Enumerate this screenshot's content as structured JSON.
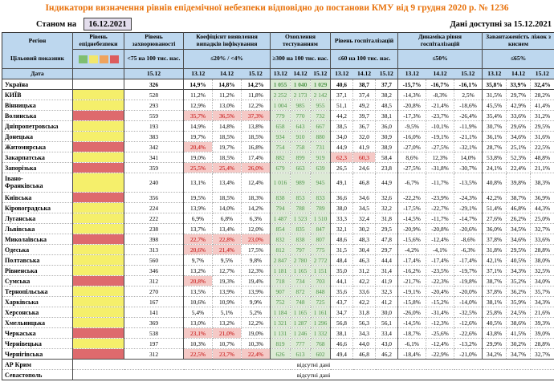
{
  "title": "Індикатори визначення рівнів епідемічної небезпеки відповідно до постанови КМУ від 9 грудня 2020 р. № 1236",
  "as_of_label": "Станом на",
  "as_of_date": "16.12.2021",
  "available_label": "Дані доступні за 15.12.2021",
  "colors": {
    "title": "#E8720C",
    "header_bg": "#BDD7EE",
    "as_of_box_bg": "#E3DDEC",
    "level_yellow": "#F5EF6B",
    "level_red": "#DE6A6D",
    "exceed_bg": "#F5C9C6",
    "exceed_text": "#C00000",
    "testing_bg": "#DCEAD5",
    "testing_text": "#4C9447",
    "legend": [
      "#7FBF70",
      "#F2E76B",
      "#EFA35C",
      "#DD5C5C"
    ]
  },
  "table": {
    "corner": {
      "region": "Регіон",
      "target": "Цільовий показник",
      "date": "Дата"
    },
    "no_data_text": "відсутні дані",
    "groups": [
      {
        "label": "Рівень епіднебезпеки",
        "target": "",
        "cols": 1,
        "dates": []
      },
      {
        "label": "Рівень захворюваності",
        "target": "<75 на 100 тис. нас.",
        "cols": 1,
        "dates": [
          "15.12"
        ]
      },
      {
        "label": "Коефіцієнт виявлення випадків інфікування",
        "target": "≤20% / <4%",
        "cols": 3,
        "dates": [
          "13.12",
          "14.12",
          "15.12"
        ]
      },
      {
        "label": "Охоплення тестуванням",
        "target": "≥300 на 100 тис. нас.",
        "cols": 3,
        "dates": [
          "13.12",
          "14.12",
          "15.12"
        ]
      },
      {
        "label": "Рівень госпіталізацій",
        "target": "≤60 на 100 тис. нас.",
        "cols": 3,
        "dates": [
          "13.12",
          "14.12",
          "15.12"
        ]
      },
      {
        "label": "Динаміка рівня госпіталізацій",
        "target": "≤50%",
        "cols": 3,
        "dates": [
          "13.12",
          "14.12",
          "15.12"
        ]
      },
      {
        "label": "Завантаженість ліжок з киснем",
        "target": "≤65%",
        "cols": 3,
        "dates": [
          "13.12",
          "14.12",
          "15.12"
        ]
      }
    ],
    "rows": [
      {
        "region": "Україна",
        "level": "none",
        "bold": true,
        "solid": true,
        "morbidity": "326",
        "coef": [
          "14,9%",
          "14,8%",
          "14,2%"
        ],
        "test": [
          "1 055",
          "1 040",
          "1 029"
        ],
        "hosp": [
          "40,6",
          "38,7",
          "37,7"
        ],
        "dyn": [
          "-15,7%",
          "-16,7%",
          "-16,1%"
        ],
        "load": [
          "35,8%",
          "33,9%",
          "32,4%"
        ]
      },
      {
        "region": "КИЇВ",
        "level": "yellow",
        "morbidity": "528",
        "coef": [
          "11,2%",
          "11,2%",
          "11,8%"
        ],
        "test": [
          "2 252",
          "2 173",
          "2 142"
        ],
        "hosp": [
          "37,1",
          "37,4",
          "38,2"
        ],
        "dyn": [
          "-14,3%",
          "-8,3%",
          "2,5%"
        ],
        "load": [
          "31,5%",
          "29,7%",
          "28,2%"
        ]
      },
      {
        "region": "Вінницька",
        "level": "yellow",
        "morbidity": "293",
        "coef": [
          "12,9%",
          "13,0%",
          "12,2%"
        ],
        "test": [
          "1 004",
          "985",
          "955"
        ],
        "hosp": [
          "51,1",
          "49,2",
          "48,5"
        ],
        "dyn": [
          "-20,8%",
          "-21,4%",
          "-18,6%"
        ],
        "load": [
          "45,5%",
          "42,9%",
          "41,4%"
        ]
      },
      {
        "region": "Волинська",
        "level": "red",
        "morbidity": "559",
        "coef": [
          "35,7%",
          "36,5%",
          "37,3%"
        ],
        "coef_flags": [
          1,
          1,
          1
        ],
        "test": [
          "779",
          "770",
          "732"
        ],
        "hosp": [
          "44,2",
          "39,7",
          "38,1"
        ],
        "dyn": [
          "-17,3%",
          "-23,7%",
          "-26,4%"
        ],
        "load": [
          "35,4%",
          "33,6%",
          "31,2%"
        ]
      },
      {
        "region": "Дніпропетровська",
        "level": "yellow",
        "morbidity": "193",
        "coef": [
          "14,9%",
          "14,8%",
          "13,8%"
        ],
        "test": [
          "658",
          "643",
          "667"
        ],
        "hosp": [
          "38,5",
          "36,7",
          "36,0"
        ],
        "dyn": [
          "-9,5%",
          "-10,1%",
          "-11,9%"
        ],
        "load": [
          "30,7%",
          "29,6%",
          "29,5%"
        ]
      },
      {
        "region": "Донецька",
        "level": "yellow",
        "morbidity": "383",
        "coef": [
          "19,7%",
          "18,5%",
          "18,5%"
        ],
        "test": [
          "934",
          "910",
          "880"
        ],
        "hosp": [
          "34,0",
          "32,0",
          "30,9"
        ],
        "dyn": [
          "-16,0%",
          "-19,1%",
          "-21,1%"
        ],
        "load": [
          "36,1%",
          "34,6%",
          "31,6%"
        ]
      },
      {
        "region": "Житомирська",
        "level": "red",
        "morbidity": "342",
        "coef": [
          "20,4%",
          "19,7%",
          "16,8%"
        ],
        "coef_flags": [
          1,
          0,
          0
        ],
        "test": [
          "754",
          "758",
          "731"
        ],
        "hosp": [
          "44,9",
          "41,9",
          "38,9"
        ],
        "dyn": [
          "-27,0%",
          "-27,5%",
          "-32,1%"
        ],
        "load": [
          "28,7%",
          "25,1%",
          "22,5%"
        ]
      },
      {
        "region": "Закарпатська",
        "level": "yellow",
        "morbidity": "341",
        "coef": [
          "19,0%",
          "18,5%",
          "17,4%"
        ],
        "test": [
          "882",
          "899",
          "919"
        ],
        "hosp": [
          "62,3",
          "60,3",
          "58,4"
        ],
        "hosp_flags": [
          1,
          1,
          0
        ],
        "dyn": [
          "8,6%",
          "12,3%",
          "14,0%"
        ],
        "load": [
          "53,8%",
          "52,3%",
          "48,8%"
        ]
      },
      {
        "region": "Запорізька",
        "level": "red",
        "morbidity": "359",
        "coef": [
          "25,5%",
          "25,4%",
          "26,0%"
        ],
        "coef_flags": [
          1,
          1,
          1
        ],
        "test": [
          "679",
          "663",
          "639"
        ],
        "hosp": [
          "26,5",
          "24,6",
          "23,8"
        ],
        "dyn": [
          "-27,5%",
          "-31,8%",
          "-30,7%"
        ],
        "load": [
          "24,1%",
          "22,4%",
          "21,1%"
        ]
      },
      {
        "region": "Івано-\nФранківська",
        "level": "yellow",
        "tall": true,
        "morbidity": "240",
        "coef": [
          "13,1%",
          "13,4%",
          "12,4%"
        ],
        "test": [
          "1 016",
          "989",
          "945"
        ],
        "hosp": [
          "49,1",
          "46,8",
          "44,9"
        ],
        "dyn": [
          "-6,7%",
          "-11,7%",
          "-13,5%"
        ],
        "load": [
          "40,8%",
          "39,8%",
          "38,3%"
        ]
      },
      {
        "region": "Київська",
        "level": "red",
        "morbidity": "356",
        "coef": [
          "19,5%",
          "18,5%",
          "18,3%"
        ],
        "test": [
          "838",
          "853",
          "833"
        ],
        "hosp": [
          "36,6",
          "34,6",
          "32,6"
        ],
        "dyn": [
          "-22,2%",
          "-23,9%",
          "-24,3%"
        ],
        "load": [
          "42,2%",
          "38,7%",
          "36,9%"
        ]
      },
      {
        "region": "Кіровоградська",
        "level": "yellow",
        "morbidity": "224",
        "coef": [
          "13,9%",
          "14,0%",
          "14,2%"
        ],
        "test": [
          "794",
          "788",
          "789"
        ],
        "hosp": [
          "38,0",
          "34,5",
          "32,2"
        ],
        "dyn": [
          "-17,5%",
          "-22,7%",
          "-29,1%"
        ],
        "load": [
          "51,4%",
          "46,8%",
          "44,3%"
        ]
      },
      {
        "region": "Луганська",
        "level": "yellow",
        "morbidity": "222",
        "coef": [
          "6,9%",
          "6,8%",
          "6,3%"
        ],
        "test": [
          "1 487",
          "1 523",
          "1 510"
        ],
        "hosp": [
          "33,3",
          "32,4",
          "31,8"
        ],
        "dyn": [
          "-14,5%",
          "-11,7%",
          "-14,7%"
        ],
        "load": [
          "27,6%",
          "26,2%",
          "25,0%"
        ]
      },
      {
        "region": "Львівська",
        "level": "yellow",
        "morbidity": "238",
        "coef": [
          "13,7%",
          "13,4%",
          "12,0%"
        ],
        "test": [
          "854",
          "835",
          "847"
        ],
        "hosp": [
          "32,1",
          "30,2",
          "29,5"
        ],
        "dyn": [
          "-20,9%",
          "-20,8%",
          "-20,6%"
        ],
        "load": [
          "36,0%",
          "34,5%",
          "32,7%"
        ]
      },
      {
        "region": "Миколаївська",
        "level": "red",
        "morbidity": "398",
        "coef": [
          "22,7%",
          "22,8%",
          "23,0%"
        ],
        "coef_flags": [
          1,
          1,
          1
        ],
        "test": [
          "832",
          "838",
          "807"
        ],
        "hosp": [
          "48,6",
          "48,3",
          "47,8"
        ],
        "dyn": [
          "-15,6%",
          "-12,4%",
          "-8,6%"
        ],
        "load": [
          "37,8%",
          "34,6%",
          "33,6%"
        ]
      },
      {
        "region": "Одеська",
        "level": "yellow",
        "morbidity": "313",
        "coef": [
          "20,6%",
          "21,4%",
          "17,5%"
        ],
        "coef_flags": [
          1,
          1,
          0
        ],
        "test": [
          "812",
          "797",
          "775"
        ],
        "hosp": [
          "31,5",
          "30,4",
          "29,7"
        ],
        "dyn": [
          "-4,2%",
          "-4,1%",
          "-6,3%"
        ],
        "load": [
          "31,8%",
          "29,5%",
          "28,8%"
        ]
      },
      {
        "region": "Полтавська",
        "level": "yellow",
        "morbidity": "560",
        "coef": [
          "9,7%",
          "9,5%",
          "9,8%"
        ],
        "test": [
          "2 847",
          "2 780",
          "2 772"
        ],
        "hosp": [
          "48,4",
          "46,3",
          "44,4"
        ],
        "dyn": [
          "-17,4%",
          "-17,4%",
          "-17,4%"
        ],
        "load": [
          "42,1%",
          "40,5%",
          "38,0%"
        ]
      },
      {
        "region": "Рівненська",
        "level": "yellow",
        "morbidity": "346",
        "coef": [
          "13,2%",
          "12,7%",
          "12,3%"
        ],
        "test": [
          "1 181",
          "1 165",
          "1 151"
        ],
        "hosp": [
          "35,0",
          "31,2",
          "31,4"
        ],
        "dyn": [
          "-16,2%",
          "-23,5%",
          "-19,7%"
        ],
        "load": [
          "37,1%",
          "34,3%",
          "32,5%"
        ]
      },
      {
        "region": "Сумська",
        "level": "red",
        "morbidity": "312",
        "coef": [
          "20,8%",
          "19,3%",
          "19,4%"
        ],
        "coef_flags": [
          1,
          0,
          0
        ],
        "test": [
          "718",
          "734",
          "703"
        ],
        "hosp": [
          "44,1",
          "42,2",
          "41,9"
        ],
        "dyn": [
          "-21,7%",
          "-22,3%",
          "-19,8%"
        ],
        "load": [
          "38,7%",
          "35,2%",
          "34,0%"
        ]
      },
      {
        "region": "Тернопільська",
        "level": "yellow",
        "morbidity": "270",
        "coef": [
          "13,5%",
          "13,9%",
          "13,9%"
        ],
        "test": [
          "907",
          "872",
          "848"
        ],
        "hosp": [
          "35,6",
          "33,6",
          "32,3"
        ],
        "dyn": [
          "-19,1%",
          "-20,4%",
          "-20,0%"
        ],
        "load": [
          "37,8%",
          "36,2%",
          "35,7%"
        ]
      },
      {
        "region": "Харківська",
        "level": "yellow",
        "morbidity": "167",
        "coef": [
          "10,6%",
          "10,9%",
          "9,9%"
        ],
        "test": [
          "752",
          "748",
          "725"
        ],
        "hosp": [
          "43,7",
          "42,2",
          "41,2"
        ],
        "dyn": [
          "-15,8%",
          "-15,2%",
          "-14,0%"
        ],
        "load": [
          "38,1%",
          "35,9%",
          "34,3%"
        ]
      },
      {
        "region": "Херсонська",
        "level": "yellow",
        "morbidity": "141",
        "coef": [
          "5,4%",
          "5,1%",
          "5,2%"
        ],
        "test": [
          "1 184",
          "1 165",
          "1 161"
        ],
        "hosp": [
          "34,7",
          "31,8",
          "30,0"
        ],
        "dyn": [
          "-26,0%",
          "-31,4%",
          "-32,5%"
        ],
        "load": [
          "25,8%",
          "24,5%",
          "21,6%"
        ]
      },
      {
        "region": "Хмельницька",
        "level": "yellow",
        "morbidity": "369",
        "coef": [
          "13,0%",
          "13,2%",
          "12,2%"
        ],
        "test": [
          "1 321",
          "1 287",
          "1 296"
        ],
        "hosp": [
          "56,8",
          "56,3",
          "56,1"
        ],
        "dyn": [
          "-14,5%",
          "-12,3%",
          "-12,6%"
        ],
        "load": [
          "40,5%",
          "38,6%",
          "39,3%"
        ]
      },
      {
        "region": "Черкаська",
        "level": "red",
        "morbidity": "538",
        "coef": [
          "23,1%",
          "21,0%",
          "19,0%"
        ],
        "coef_flags": [
          1,
          1,
          0
        ],
        "test": [
          "1 131",
          "1 246",
          "1 332"
        ],
        "hosp": [
          "38,1",
          "34,3",
          "33,4"
        ],
        "dyn": [
          "-18,7%",
          "-25,6%",
          "-22,6%"
        ],
        "load": [
          "43,8%",
          "41,5%",
          "39,0%"
        ]
      },
      {
        "region": "Чернівецька",
        "level": "yellow",
        "morbidity": "197",
        "coef": [
          "10,3%",
          "10,7%",
          "10,3%"
        ],
        "test": [
          "819",
          "777",
          "768"
        ],
        "hosp": [
          "46,6",
          "44,0",
          "43,0"
        ],
        "dyn": [
          "-6,1%",
          "-12,4%",
          "-13,2%"
        ],
        "load": [
          "29,9%",
          "30,2%",
          "28,8%"
        ]
      },
      {
        "region": "Чернігівська",
        "level": "red",
        "solid": true,
        "morbidity": "312",
        "coef": [
          "22,5%",
          "23,7%",
          "22,4%"
        ],
        "coef_flags": [
          1,
          1,
          1
        ],
        "test": [
          "626",
          "613",
          "602"
        ],
        "hosp": [
          "49,4",
          "46,8",
          "46,2"
        ],
        "dyn": [
          "-18,4%",
          "-22,9%",
          "-21,0%"
        ],
        "load": [
          "34,2%",
          "34,7%",
          "32,7%"
        ]
      },
      {
        "region": "АР Крим",
        "no_data": true
      },
      {
        "region": "Севастополь",
        "no_data": true
      }
    ]
  }
}
